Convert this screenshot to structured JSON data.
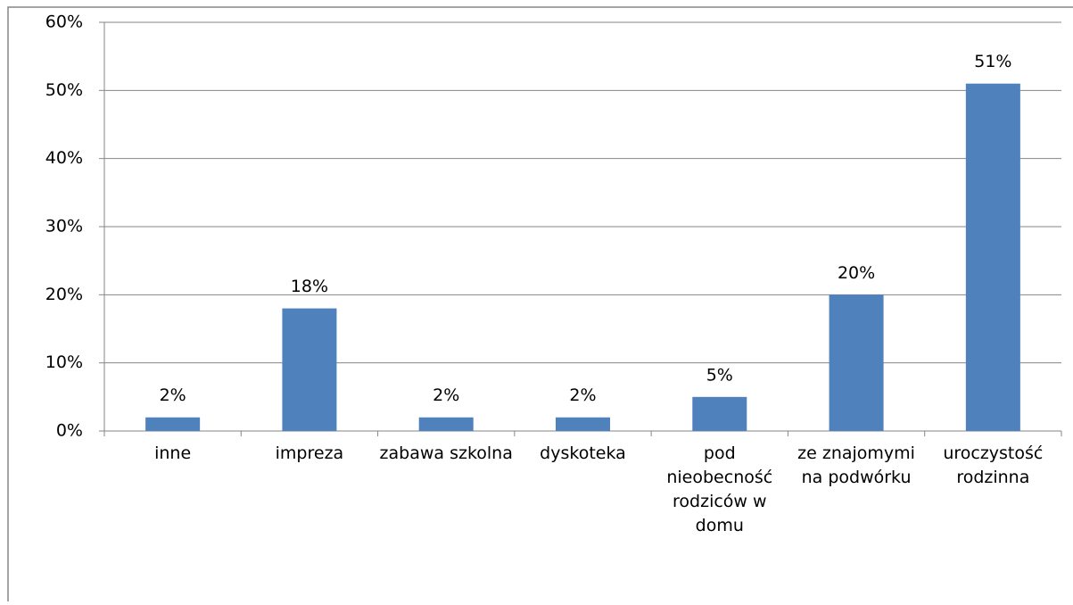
{
  "chart_data": {
    "type": "bar",
    "categories": [
      "inne",
      "impreza",
      "zabawa szkolna",
      "dyskoteka",
      "pod nieobecność rodziców w domu",
      "ze znajomymi na podwórku",
      "uroczystość rodzinna"
    ],
    "values": [
      2,
      18,
      2,
      2,
      5,
      20,
      51
    ],
    "value_labels": [
      "2%",
      "18%",
      "2%",
      "2%",
      "5%",
      "20%",
      "51%"
    ],
    "color": "#4f81bd",
    "ylim": [
      0,
      60
    ],
    "yticks": [
      {
        "value": 0,
        "label": "0%"
      },
      {
        "value": 10,
        "label": "10%"
      },
      {
        "value": 20,
        "label": "20%"
      },
      {
        "value": 30,
        "label": "30%"
      },
      {
        "value": 40,
        "label": "40%"
      },
      {
        "value": 50,
        "label": "50%"
      },
      {
        "value": 60,
        "label": "60%"
      }
    ],
    "grid": true
  }
}
